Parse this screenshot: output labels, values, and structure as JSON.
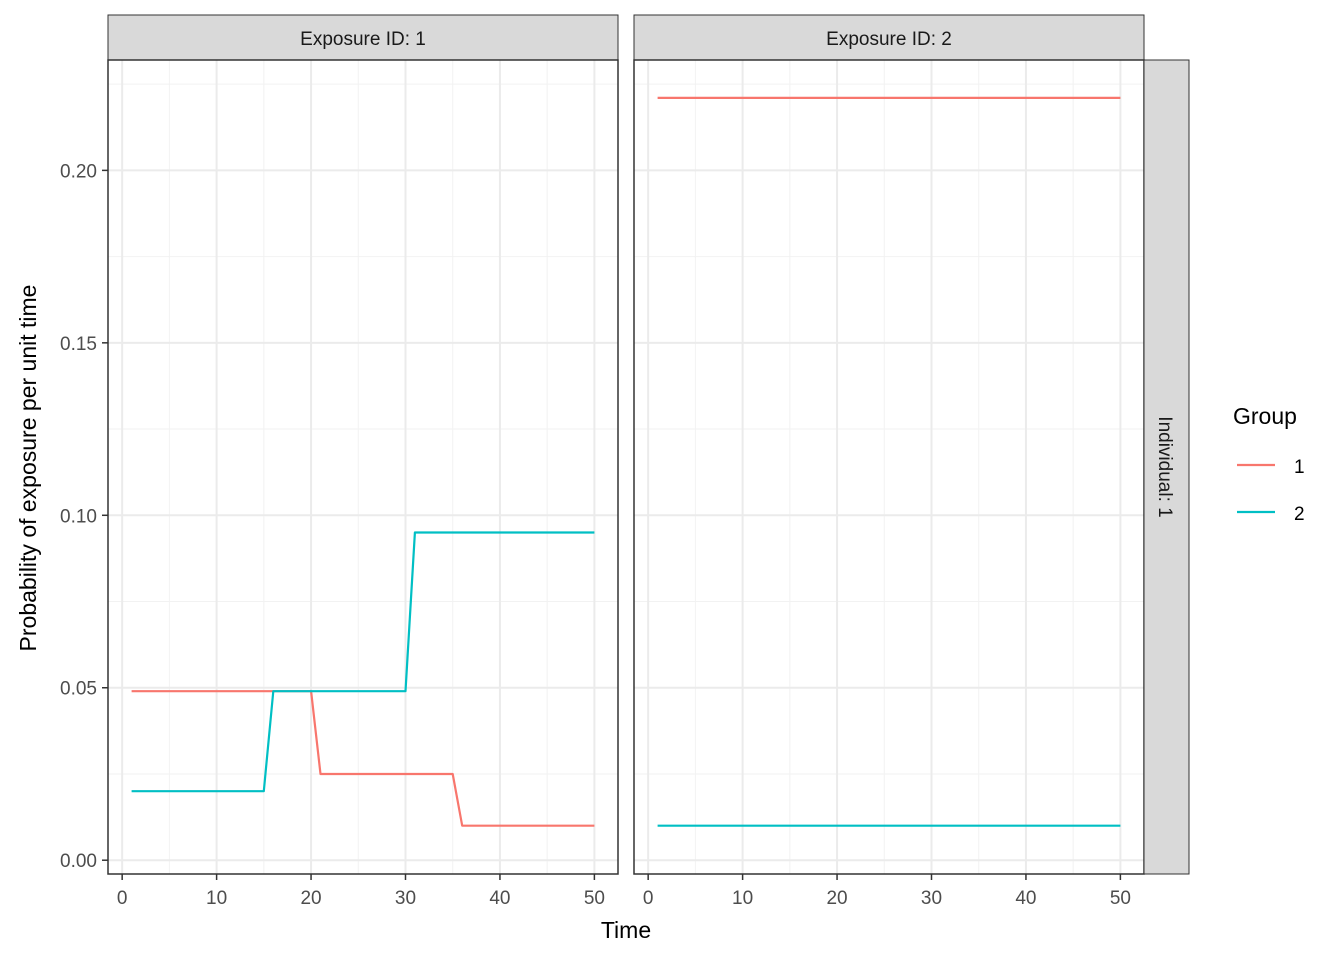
{
  "chart_data": {
    "type": "line",
    "xlabel": "Time",
    "ylabel": "Probability of exposure per unit time",
    "xlim": [
      -1.5,
      52.5
    ],
    "ylim": [
      -0.004,
      0.232
    ],
    "x_ticks": [
      0,
      10,
      20,
      30,
      40,
      50
    ],
    "x_tick_labels": [
      "0",
      "10",
      "20",
      "30",
      "40",
      "50"
    ],
    "y_ticks": [
      0.0,
      0.05,
      0.1,
      0.15,
      0.2
    ],
    "y_tick_labels": [
      "0.00",
      "0.05",
      "0.10",
      "0.15",
      "0.20"
    ],
    "grid": true,
    "legend": {
      "title": "Group",
      "position": "right",
      "entries": [
        {
          "label": "1",
          "color": "#F8766D"
        },
        {
          "label": "2",
          "color": "#00BFC4"
        }
      ]
    },
    "row_strip": "Individual: 1",
    "panels": [
      {
        "strip": "Exposure ID: 1",
        "series": [
          {
            "name": "1",
            "color": "#F8766D",
            "x": [
              1,
              20,
              21,
              35,
              36,
              50
            ],
            "y": [
              0.049,
              0.049,
              0.025,
              0.025,
              0.01,
              0.01
            ]
          },
          {
            "name": "2",
            "color": "#00BFC4",
            "x": [
              1,
              15,
              16,
              30,
              31,
              50
            ],
            "y": [
              0.02,
              0.02,
              0.049,
              0.049,
              0.095,
              0.095
            ]
          }
        ]
      },
      {
        "strip": "Exposure ID: 2",
        "series": [
          {
            "name": "1",
            "color": "#F8766D",
            "x": [
              1,
              50
            ],
            "y": [
              0.221,
              0.221
            ]
          },
          {
            "name": "2",
            "color": "#00BFC4",
            "x": [
              1,
              50
            ],
            "y": [
              0.01,
              0.01
            ]
          }
        ]
      }
    ]
  }
}
